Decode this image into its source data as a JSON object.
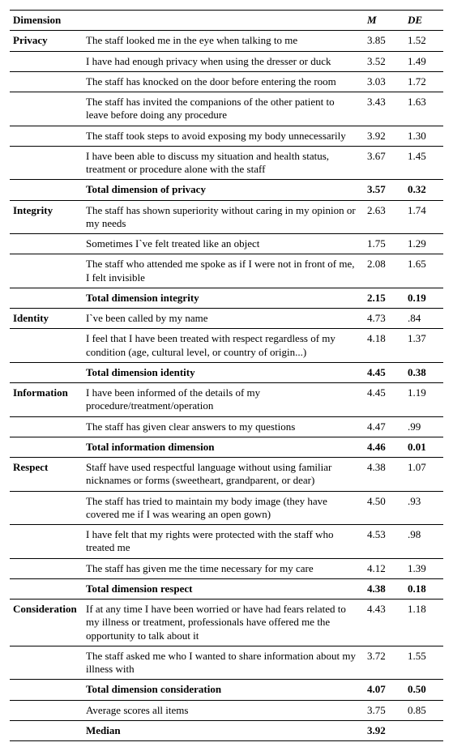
{
  "header": {
    "dimension": "Dimension",
    "m": "M",
    "de": "DE"
  },
  "rows": [
    {
      "dim": "Privacy",
      "item": "The staff looked me in the eye when talking to me",
      "m": "3.85",
      "de": "1.52",
      "line": true
    },
    {
      "dim": "",
      "item": "I have had enough privacy when using the dresser or duck",
      "m": "3.52",
      "de": "1.49",
      "line": true
    },
    {
      "dim": "",
      "item": "The staff has knocked on the door before entering the room",
      "m": "3.03",
      "de": "1.72",
      "line": true
    },
    {
      "dim": "",
      "item": "The staff has invited the companions of the other patient to leave before doing any procedure",
      "m": "3.43",
      "de": "1.63",
      "line": true
    },
    {
      "dim": "",
      "item": "The staff took steps to avoid exposing my body unnecessarily",
      "m": "3.92",
      "de": "1.30",
      "line": true
    },
    {
      "dim": "",
      "item": "I have been able to discuss my situation and health status, treatment or procedure alone with the staff",
      "m": "3.67",
      "de": "1.45",
      "line": true
    },
    {
      "dim": "",
      "item": "Total dimension of privacy",
      "m": "3.57",
      "de": "0.32",
      "line": true,
      "bold": true
    },
    {
      "dim": "Integrity",
      "item": "The staff has shown superiority without caring in my opinion or my needs",
      "m": "2.63",
      "de": "1.74",
      "line": true
    },
    {
      "dim": "",
      "item": "Sometimes I`ve felt treated like an object",
      "m": "1.75",
      "de": "1.29",
      "line": true
    },
    {
      "dim": "",
      "item": "The staff who attended me spoke as if I were not in front of me, I felt invisible",
      "m": "2.08",
      "de": "1.65",
      "line": true
    },
    {
      "dim": "",
      "item": "Total dimension integrity",
      "m": "2.15",
      "de": "0.19",
      "line": true,
      "bold": true
    },
    {
      "dim": "Identity",
      "item": "I`ve been called by my name",
      "m": "4.73",
      "de": ".84",
      "line": true
    },
    {
      "dim": "",
      "item": "I feel that I have been treated with respect regardless of my condition (age, cultural level, or country of origin...)",
      "m": "4.18",
      "de": "1.37",
      "line": true
    },
    {
      "dim": "",
      "item": "Total dimension identity",
      "m": "4.45",
      "de": "0.38",
      "line": true,
      "bold": true
    },
    {
      "dim": "Information",
      "item": "I have been informed of the details of my procedure/treatment/operation",
      "m": "4.45",
      "de": "1.19",
      "line": true
    },
    {
      "dim": "",
      "item": "The staff has given clear answers to my questions",
      "m": "4.47",
      "de": ".99",
      "line": true
    },
    {
      "dim": "",
      "item": "Total information dimension",
      "m": "4.46",
      "de": "0.01",
      "line": true,
      "bold": true
    },
    {
      "dim": "Respect",
      "item": "Staff have used respectful language without using familiar nicknames or forms (sweetheart, grandparent, or dear)",
      "m": "4.38",
      "de": "1.07",
      "line": true
    },
    {
      "dim": "",
      "item": "The staff has tried to maintain my body image (they have covered me if I was wearing an open gown)",
      "m": "4.50",
      "de": ".93",
      "line": true
    },
    {
      "dim": "",
      "item": "I have felt that my rights were protected with the staff who treated me",
      "m": "4.53",
      "de": ".98",
      "line": true
    },
    {
      "dim": "",
      "item": "The staff has given me the time necessary for my care",
      "m": "4.12",
      "de": "1.39",
      "line": true
    },
    {
      "dim": "",
      "item": "Total dimension respect",
      "m": "4.38",
      "de": "0.18",
      "line": true,
      "bold": true
    },
    {
      "dim": "Consideration",
      "item": "If at any time I have been worried or have had fears related to my illness or treatment, professionals have offered me the opportunity to talk about it",
      "m": "4.43",
      "de": "1.18",
      "line": true
    },
    {
      "dim": "",
      "item": "The staff asked me who I wanted to share information about my illness with",
      "m": "3.72",
      "de": "1.55",
      "line": true
    },
    {
      "dim": "",
      "item": "Total dimension consideration",
      "m": "4.07",
      "de": "0.50",
      "line": true,
      "bold": true
    },
    {
      "dim": "",
      "item": "Average scores all items",
      "m": "3.75",
      "de": "0.85",
      "line": true
    },
    {
      "dim": "",
      "item": "Median",
      "m": "3.92",
      "de": "",
      "line": true,
      "bold": true
    }
  ]
}
